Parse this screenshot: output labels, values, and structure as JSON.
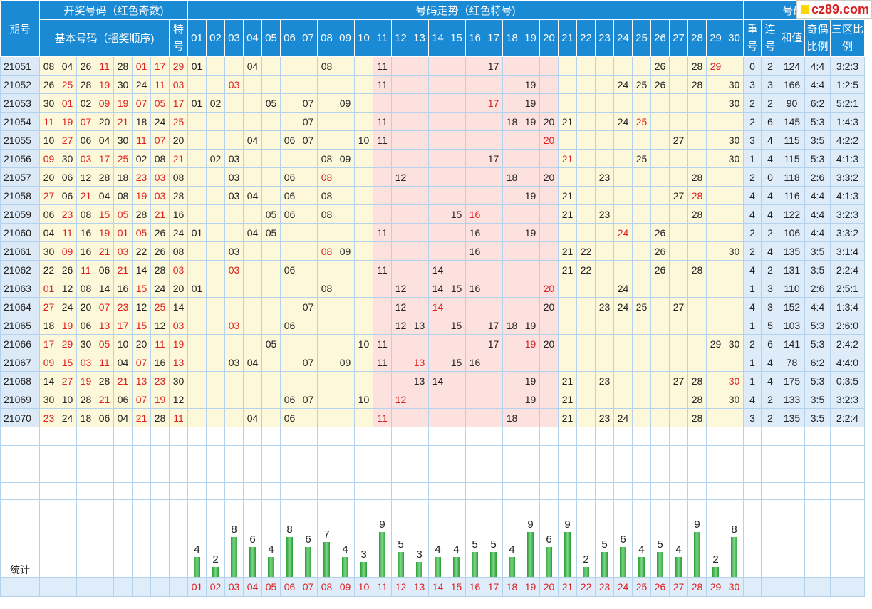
{
  "logo": {
    "text": "cz89.com"
  },
  "header": {
    "period_label": "期号",
    "draw_label": "开奖号码（红色奇数)",
    "basic_label": "基本号码（摇奖顺序)",
    "special_label": "特号",
    "trend_label": "号码走势（红色特号)",
    "analysis_label": "号码分析",
    "repeat_label": "重号",
    "consec_label": "连号",
    "sum_label": "和值",
    "oddeven_label": "奇偶比例",
    "zone_label": "三区比例",
    "numbers": [
      "01",
      "02",
      "03",
      "04",
      "05",
      "06",
      "07",
      "08",
      "09",
      "10",
      "11",
      "12",
      "13",
      "14",
      "15",
      "16",
      "17",
      "18",
      "19",
      "20",
      "21",
      "22",
      "23",
      "24",
      "25",
      "26",
      "27",
      "28",
      "29",
      "30"
    ]
  },
  "rows": [
    {
      "period": "21051",
      "basic": [
        "08",
        "04",
        "26",
        "11",
        "28",
        "01",
        "17"
      ],
      "special": "29",
      "repeat": "0",
      "consec": "2",
      "sum": "124",
      "oddeven": "4:4",
      "zone": "3:2:3"
    },
    {
      "period": "21052",
      "basic": [
        "26",
        "25",
        "28",
        "19",
        "30",
        "24",
        "11"
      ],
      "special": "03",
      "repeat": "3",
      "consec": "3",
      "sum": "166",
      "oddeven": "4:4",
      "zone": "1:2:5"
    },
    {
      "period": "21053",
      "basic": [
        "30",
        "01",
        "02",
        "09",
        "19",
        "07",
        "05"
      ],
      "special": "17",
      "repeat": "2",
      "consec": "2",
      "sum": "90",
      "oddeven": "6:2",
      "zone": "5:2:1"
    },
    {
      "period": "21054",
      "basic": [
        "11",
        "19",
        "07",
        "20",
        "21",
        "18",
        "24"
      ],
      "special": "25",
      "repeat": "2",
      "consec": "6",
      "sum": "145",
      "oddeven": "5:3",
      "zone": "1:4:3"
    },
    {
      "period": "21055",
      "basic": [
        "10",
        "27",
        "06",
        "04",
        "30",
        "11",
        "07"
      ],
      "special": "20",
      "repeat": "3",
      "consec": "4",
      "sum": "115",
      "oddeven": "3:5",
      "zone": "4:2:2"
    },
    {
      "period": "21056",
      "basic": [
        "09",
        "30",
        "03",
        "17",
        "25",
        "02",
        "08"
      ],
      "special": "21",
      "repeat": "1",
      "consec": "4",
      "sum": "115",
      "oddeven": "5:3",
      "zone": "4:1:3"
    },
    {
      "period": "21057",
      "basic": [
        "20",
        "06",
        "12",
        "28",
        "18",
        "23",
        "03"
      ],
      "special": "08",
      "repeat": "2",
      "consec": "0",
      "sum": "118",
      "oddeven": "2:6",
      "zone": "3:3:2"
    },
    {
      "period": "21058",
      "basic": [
        "27",
        "06",
        "21",
        "04",
        "08",
        "19",
        "03"
      ],
      "special": "28",
      "repeat": "4",
      "consec": "4",
      "sum": "116",
      "oddeven": "4:4",
      "zone": "4:1:3"
    },
    {
      "period": "21059",
      "basic": [
        "06",
        "23",
        "08",
        "15",
        "05",
        "28",
        "21"
      ],
      "special": "16",
      "repeat": "4",
      "consec": "4",
      "sum": "122",
      "oddeven": "4:4",
      "zone": "3:2:3"
    },
    {
      "period": "21060",
      "basic": [
        "04",
        "11",
        "16",
        "19",
        "01",
        "05",
        "26"
      ],
      "special": "24",
      "repeat": "2",
      "consec": "2",
      "sum": "106",
      "oddeven": "4:4",
      "zone": "3:3:2"
    },
    {
      "period": "21061",
      "basic": [
        "30",
        "09",
        "16",
        "21",
        "03",
        "22",
        "26"
      ],
      "special": "08",
      "repeat": "2",
      "consec": "4",
      "sum": "135",
      "oddeven": "3:5",
      "zone": "3:1:4"
    },
    {
      "period": "21062",
      "basic": [
        "22",
        "26",
        "11",
        "06",
        "21",
        "14",
        "28"
      ],
      "special": "03",
      "repeat": "4",
      "consec": "2",
      "sum": "131",
      "oddeven": "3:5",
      "zone": "2:2:4"
    },
    {
      "period": "21063",
      "basic": [
        "01",
        "12",
        "08",
        "14",
        "16",
        "15",
        "24"
      ],
      "special": "20",
      "repeat": "1",
      "consec": "3",
      "sum": "110",
      "oddeven": "2:6",
      "zone": "2:5:1"
    },
    {
      "period": "21064",
      "basic": [
        "27",
        "24",
        "20",
        "07",
        "23",
        "12",
        "25"
      ],
      "special": "14",
      "repeat": "4",
      "consec": "3",
      "sum": "152",
      "oddeven": "4:4",
      "zone": "1:3:4"
    },
    {
      "period": "21065",
      "basic": [
        "18",
        "19",
        "06",
        "13",
        "17",
        "15",
        "12"
      ],
      "special": "03",
      "repeat": "1",
      "consec": "5",
      "sum": "103",
      "oddeven": "5:3",
      "zone": "2:6:0"
    },
    {
      "period": "21066",
      "basic": [
        "17",
        "29",
        "30",
        "05",
        "10",
        "20",
        "11"
      ],
      "special": "19",
      "repeat": "2",
      "consec": "6",
      "sum": "141",
      "oddeven": "5:3",
      "zone": "2:4:2"
    },
    {
      "period": "21067",
      "basic": [
        "09",
        "15",
        "03",
        "11",
        "04",
        "07",
        "16"
      ],
      "special": "13",
      "repeat": "1",
      "consec": "4",
      "sum": "78",
      "oddeven": "6:2",
      "zone": "4:4:0"
    },
    {
      "period": "21068",
      "basic": [
        "14",
        "27",
        "19",
        "28",
        "21",
        "13",
        "23"
      ],
      "special": "30",
      "repeat": "1",
      "consec": "4",
      "sum": "175",
      "oddeven": "5:3",
      "zone": "0:3:5"
    },
    {
      "period": "21069",
      "basic": [
        "30",
        "10",
        "28",
        "21",
        "06",
        "07",
        "19"
      ],
      "special": "12",
      "repeat": "4",
      "consec": "2",
      "sum": "133",
      "oddeven": "3:5",
      "zone": "3:2:3"
    },
    {
      "period": "21070",
      "basic": [
        "23",
        "24",
        "18",
        "06",
        "04",
        "21",
        "28"
      ],
      "special": "11",
      "repeat": "3",
      "consec": "2",
      "sum": "135",
      "oddeven": "3:5",
      "zone": "2:2:4"
    }
  ],
  "stats_label": "统计",
  "stats": [
    4,
    2,
    8,
    6,
    4,
    8,
    6,
    7,
    4,
    3,
    9,
    5,
    3,
    4,
    4,
    5,
    5,
    4,
    9,
    6,
    9,
    2,
    5,
    6,
    4,
    5,
    4,
    9,
    2,
    8
  ],
  "colors": {
    "header_bg": "#1a8ad4",
    "odd_red": "#dd1f1f",
    "trend_pink": "#fde1de",
    "cell_yellow": "#fdf8da",
    "bar_green": "#2a9e34"
  }
}
